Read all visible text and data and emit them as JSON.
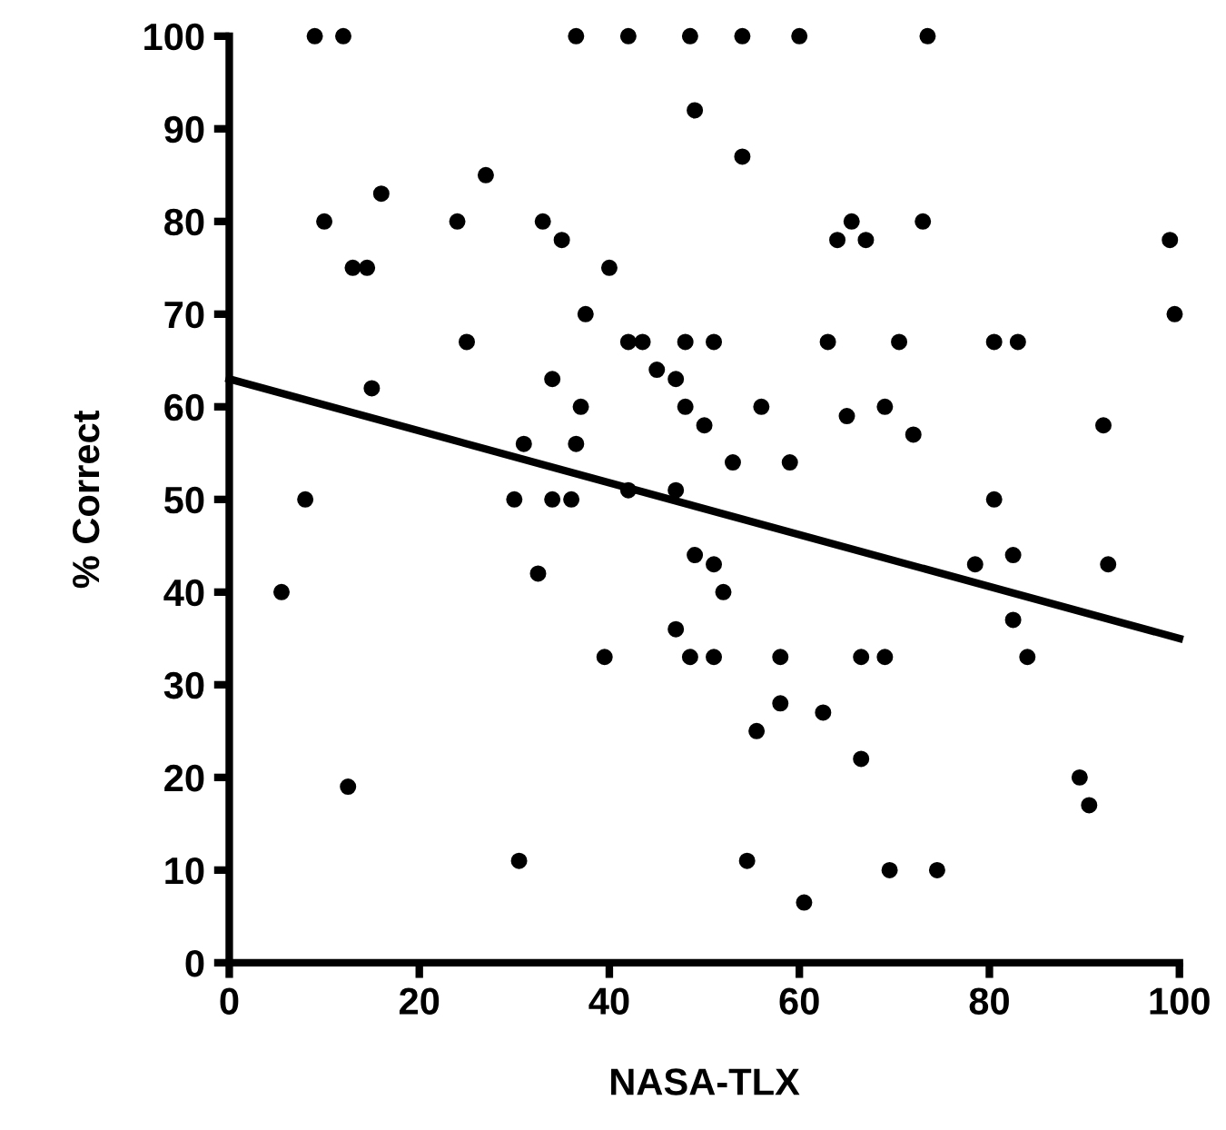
{
  "chart_data": {
    "type": "scatter",
    "xlabel": "NASA-TLX",
    "ylabel": "% Correct",
    "xlim": [
      0,
      100
    ],
    "ylim": [
      0,
      100
    ],
    "xticks": [
      0,
      20,
      40,
      60,
      80,
      100
    ],
    "yticks": [
      0,
      10,
      20,
      30,
      40,
      50,
      60,
      70,
      80,
      90,
      100
    ],
    "grid": false,
    "series": [
      {
        "color": "#000000",
        "marker": "circle",
        "x": [
          9,
          12,
          36.5,
          42,
          48.5,
          54,
          60,
          73.5,
          49,
          27,
          16,
          10,
          24,
          33,
          35,
          40,
          13,
          14.5,
          54,
          65.5,
          64,
          67,
          73,
          99,
          37.5,
          99.5,
          25,
          42,
          43.5,
          48,
          51,
          63,
          70.5,
          80.5,
          83,
          45,
          47,
          48,
          50,
          15,
          34,
          37,
          36.5,
          31,
          56,
          65,
          69,
          72,
          92,
          8,
          30,
          34,
          36,
          42,
          47,
          53,
          59,
          80.5,
          49,
          51,
          52,
          48.5,
          51,
          58,
          66.5,
          69,
          58,
          62.5,
          55.5,
          66.5,
          82.5,
          78.5,
          92.5,
          82.5,
          84,
          89.5,
          90.5,
          54.5,
          69.5,
          74.5,
          60.5,
          5.5,
          32.5,
          47,
          39.5,
          12.5,
          30.5
        ],
        "values": [
          100,
          100,
          100,
          100,
          100,
          100,
          100,
          100,
          92,
          85,
          83,
          80,
          80,
          80,
          78,
          75,
          75,
          75,
          87,
          80,
          78,
          78,
          80,
          78,
          70,
          70,
          67,
          67,
          67,
          67,
          67,
          67,
          67,
          67,
          67,
          64,
          63,
          60,
          58,
          62,
          63,
          60,
          56,
          56,
          60,
          59,
          60,
          57,
          58,
          50,
          50,
          50,
          50,
          51,
          51,
          54,
          54,
          50,
          44,
          43,
          40,
          33,
          33,
          33,
          33,
          33,
          28,
          27,
          25,
          22,
          44,
          43,
          43,
          37,
          33,
          20,
          17,
          11,
          10,
          10,
          6.5,
          40,
          42,
          36,
          33,
          19,
          11
        ]
      },
      {
        "type": "line",
        "color": "#000000",
        "line_style": "solid",
        "marker": "none",
        "x": [
          0,
          100
        ],
        "values": [
          63,
          35
        ]
      }
    ]
  }
}
